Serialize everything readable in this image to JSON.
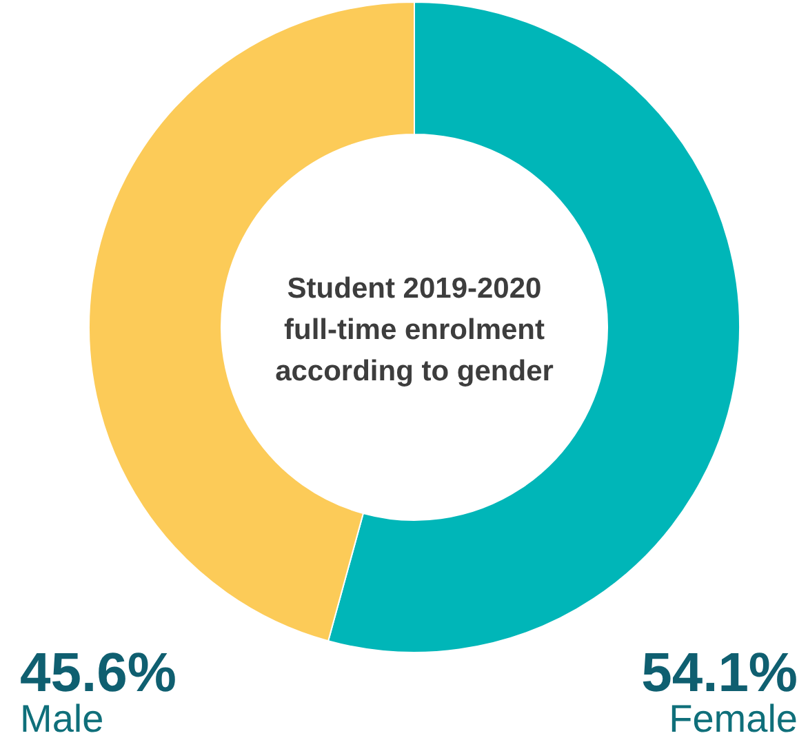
{
  "chart_data": {
    "type": "donut",
    "title": "Student 2019-2020 full-time enrolment according to gender",
    "categories": [
      "Female",
      "Male"
    ],
    "values": [
      54.1,
      45.6
    ],
    "colors": [
      "#00b6b8",
      "#fccb58"
    ],
    "value_labels": [
      "54.1%",
      "45.6%"
    ]
  }
}
